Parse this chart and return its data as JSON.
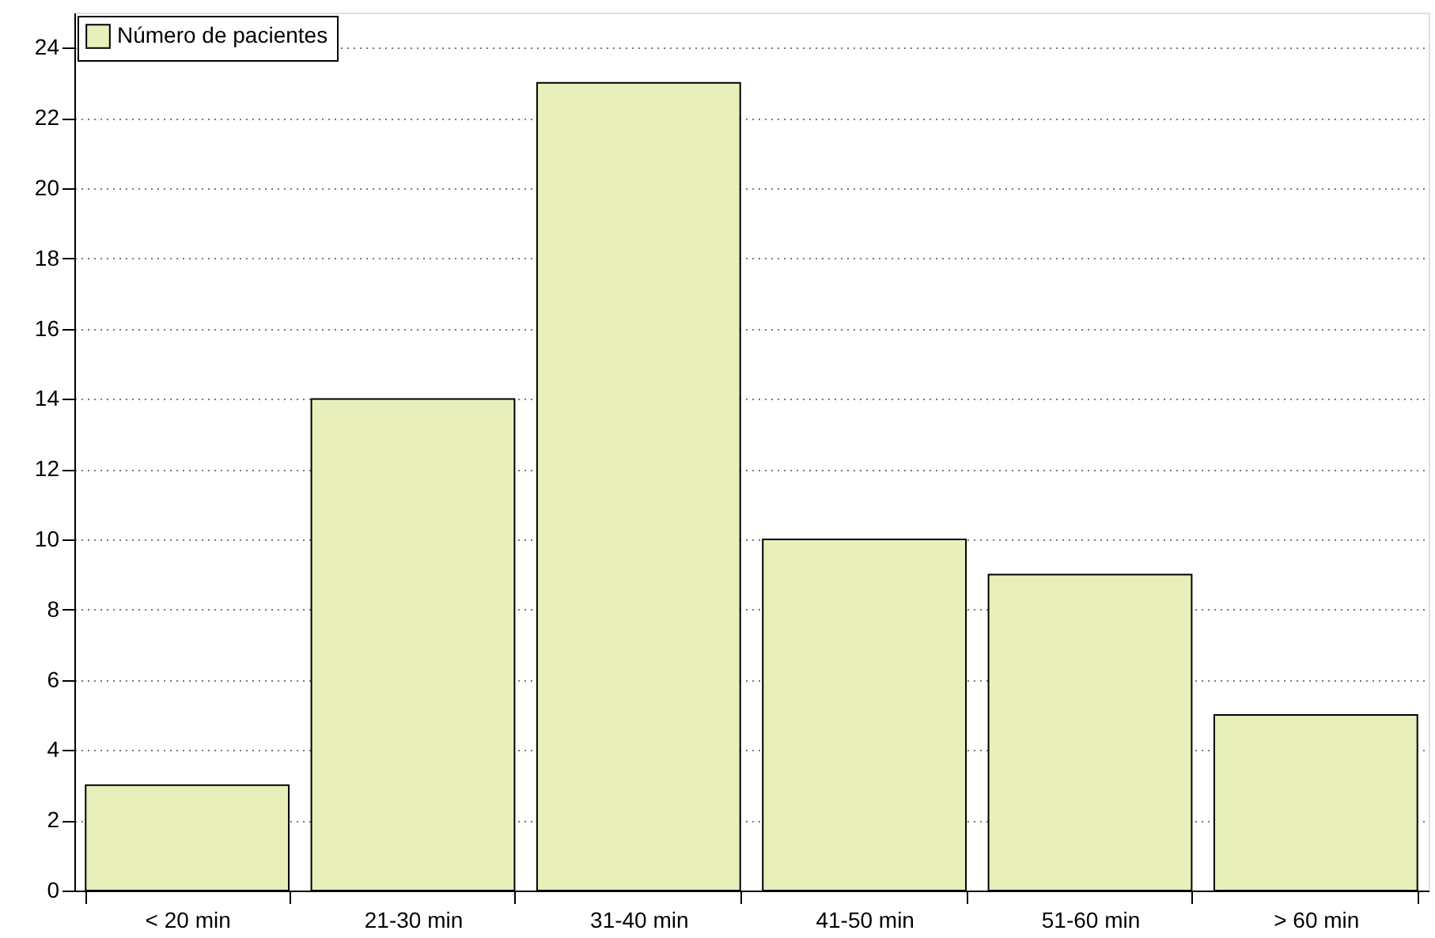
{
  "chart_data": {
    "type": "bar",
    "categories": [
      "< 20 min",
      "21-30 min",
      "31-40 min",
      "41-50 min",
      "51-60 min",
      "> 60 min"
    ],
    "series": [
      {
        "name": "Número de pacientes",
        "color": "#e8efbb",
        "values": [
          3,
          14,
          23,
          10,
          9,
          5
        ]
      }
    ],
    "ylim": [
      0,
      25
    ],
    "yticks": [
      0,
      2,
      4,
      6,
      8,
      10,
      12,
      14,
      16,
      18,
      20,
      22,
      24
    ],
    "grid": "y",
    "legend": "top left"
  }
}
